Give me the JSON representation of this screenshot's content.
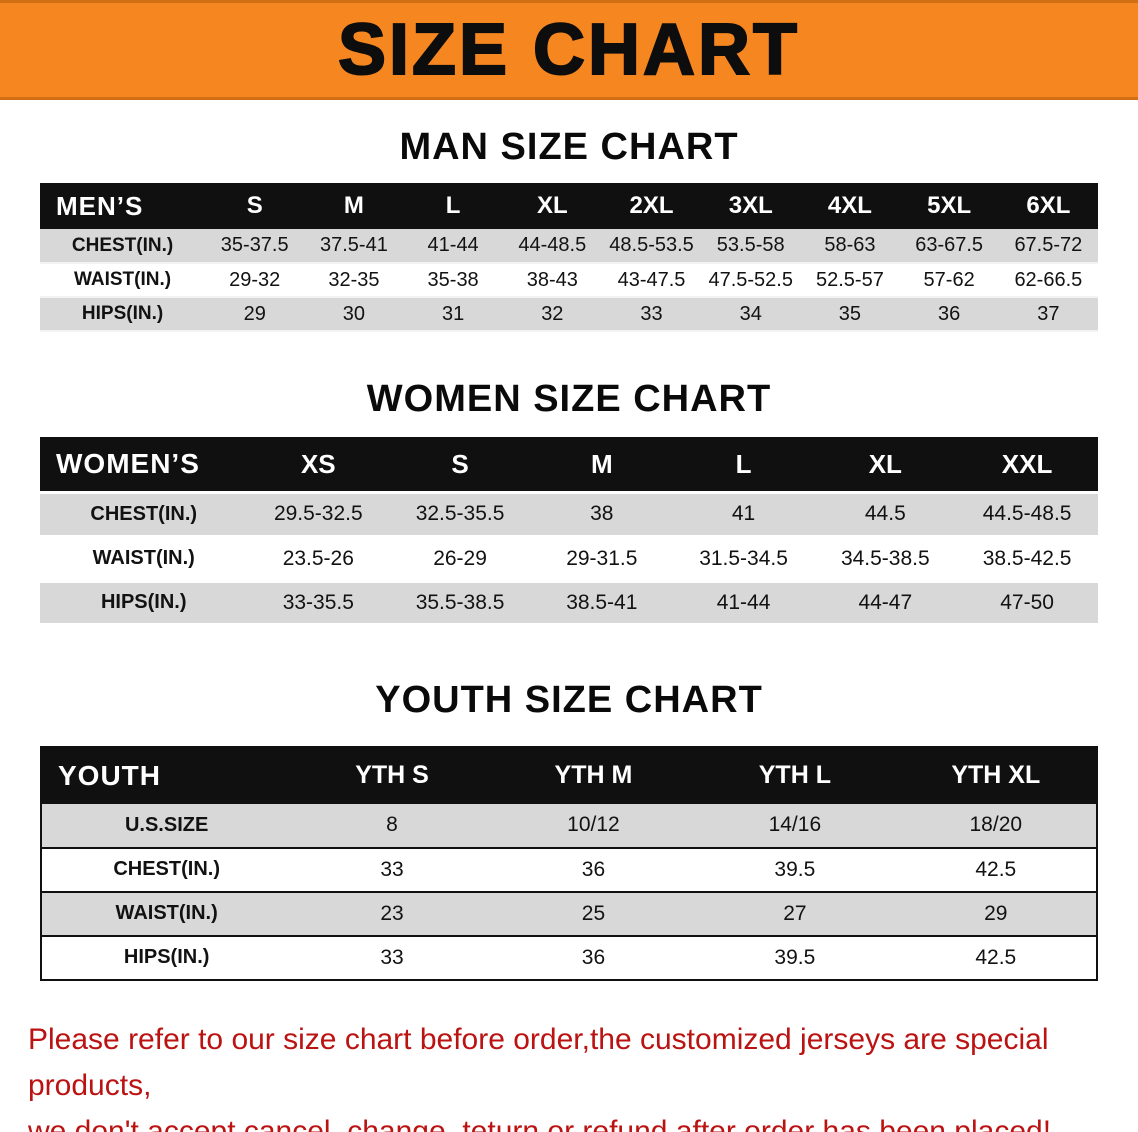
{
  "banner": {
    "title": "SIZE CHART",
    "bg_color": "#f6861f"
  },
  "tables": [
    {
      "id": "men",
      "heading": "MAN SIZE CHART",
      "header_label": "MEN’S",
      "columns": [
        "S",
        "M",
        "L",
        "XL",
        "2XL",
        "3XL",
        "4XL",
        "5XL",
        "6XL"
      ],
      "rows": [
        {
          "label": "CHEST(IN.)",
          "values": [
            "35-37.5",
            "37.5-41",
            "41-44",
            "44-48.5",
            "48.5-53.5",
            "53.5-58",
            "58-63",
            "63-67.5",
            "67.5-72"
          ]
        },
        {
          "label": "WAIST(IN.)",
          "values": [
            "29-32",
            "32-35",
            "35-38",
            "38-43",
            "43-47.5",
            "47.5-52.5",
            "52.5-57",
            "57-62",
            "62-66.5"
          ]
        },
        {
          "label": "HIPS(IN.)",
          "values": [
            "29",
            "30",
            "31",
            "32",
            "33",
            "34",
            "35",
            "36",
            "37"
          ]
        }
      ]
    },
    {
      "id": "women",
      "heading": "WOMEN SIZE CHART",
      "header_label": "WOMEN’S",
      "columns": [
        "XS",
        "S",
        "M",
        "L",
        "XL",
        "XXL"
      ],
      "rows": [
        {
          "label": "CHEST(IN.)",
          "values": [
            "29.5-32.5",
            "32.5-35.5",
            "38",
            "41",
            "44.5",
            "44.5-48.5"
          ]
        },
        {
          "label": "WAIST(IN.)",
          "values": [
            "23.5-26",
            "26-29",
            "29-31.5",
            "31.5-34.5",
            "34.5-38.5",
            "38.5-42.5"
          ]
        },
        {
          "label": "HIPS(IN.)",
          "values": [
            "33-35.5",
            "35.5-38.5",
            "38.5-41",
            "41-44",
            "44-47",
            "47-50"
          ]
        }
      ]
    },
    {
      "id": "youth",
      "heading": "YOUTH SIZE CHART",
      "header_label": "YOUTH",
      "columns": [
        "YTH S",
        "YTH M",
        "YTH L",
        "YTH XL"
      ],
      "rows": [
        {
          "label": "U.S.SIZE",
          "values": [
            "8",
            "10/12",
            "14/16",
            "18/20"
          ]
        },
        {
          "label": "CHEST(IN.)",
          "values": [
            "33",
            "36",
            "39.5",
            "42.5"
          ]
        },
        {
          "label": "WAIST(IN.)",
          "values": [
            "23",
            "25",
            "27",
            "29"
          ]
        },
        {
          "label": "HIPS(IN.)",
          "values": [
            "33",
            "36",
            "39.5",
            "42.5"
          ]
        }
      ]
    }
  ],
  "footer_note": {
    "line1": "Please refer to our size chart before order,the customized jerseys are special products,",
    "line2": "we don't accept cancel, change, teturn or refund after order has been placed!",
    "color": "#bb1212"
  }
}
